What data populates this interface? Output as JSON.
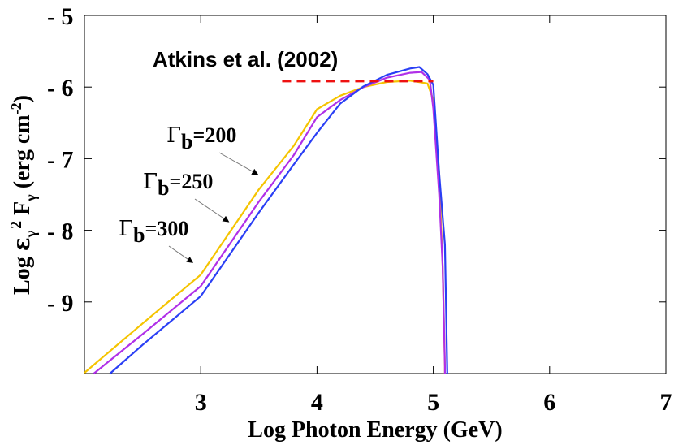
{
  "chart_data": {
    "type": "line",
    "title": "",
    "xlabel": "Log Photon Energy (GeV)",
    "ylabel_parts": {
      "log": "Log ",
      "eps": "ε",
      "gamma_sub": "γ",
      "two": "2",
      "F": " F",
      "units": " (erg cm",
      "minus2": "-2",
      "close": ")"
    },
    "xlim": [
      2,
      7
    ],
    "ylim": [
      -10,
      -5
    ],
    "x_ticks": [
      {
        "value": 3,
        "label": "3"
      },
      {
        "value": 4,
        "label": "4"
      },
      {
        "value": 5,
        "label": "5"
      },
      {
        "value": 6,
        "label": "6"
      },
      {
        "value": 7,
        "label": "7"
      }
    ],
    "y_ticks": [
      {
        "value": -5,
        "label": "- 5"
      },
      {
        "value": -6,
        "label": "- 6"
      },
      {
        "value": -7,
        "label": "- 7"
      },
      {
        "value": -8,
        "label": "- 8"
      },
      {
        "value": -9,
        "label": "- 9"
      }
    ],
    "series": [
      {
        "name": "Γb=200",
        "color": "#f5c400",
        "points": [
          [
            2.0,
            -9.99
          ],
          [
            2.5,
            -9.3
          ],
          [
            3.0,
            -8.62
          ],
          [
            3.5,
            -7.43
          ],
          [
            3.8,
            -6.82
          ],
          [
            4.0,
            -6.31
          ],
          [
            4.2,
            -6.12
          ],
          [
            4.4,
            -6.0
          ],
          [
            4.6,
            -5.93
          ],
          [
            4.8,
            -5.91
          ],
          [
            4.95,
            -5.95
          ],
          [
            5.0,
            -6.18
          ],
          [
            5.05,
            -7.2
          ],
          [
            5.08,
            -8.5
          ],
          [
            5.1,
            -9.9
          ],
          [
            5.1,
            -10.0
          ]
        ]
      },
      {
        "name": "Γb=250",
        "color": "#b030e8",
        "points": [
          [
            2.08,
            -10.0
          ],
          [
            2.5,
            -9.45
          ],
          [
            3.0,
            -8.78
          ],
          [
            3.5,
            -7.6
          ],
          [
            3.8,
            -6.95
          ],
          [
            4.0,
            -6.42
          ],
          [
            4.2,
            -6.18
          ],
          [
            4.4,
            -6.0
          ],
          [
            4.6,
            -5.87
          ],
          [
            4.8,
            -5.8
          ],
          [
            4.9,
            -5.79
          ],
          [
            4.97,
            -5.9
          ],
          [
            5.0,
            -6.3
          ],
          [
            5.05,
            -7.5
          ],
          [
            5.08,
            -8.5
          ],
          [
            5.1,
            -9.9
          ],
          [
            5.1,
            -10.0
          ]
        ]
      },
      {
        "name": "Γb=300",
        "color": "#2a3ff5",
        "points": [
          [
            2.22,
            -10.0
          ],
          [
            2.5,
            -9.6
          ],
          [
            3.0,
            -8.92
          ],
          [
            3.5,
            -7.75
          ],
          [
            3.8,
            -7.08
          ],
          [
            4.0,
            -6.64
          ],
          [
            4.2,
            -6.23
          ],
          [
            4.4,
            -5.99
          ],
          [
            4.6,
            -5.83
          ],
          [
            4.8,
            -5.74
          ],
          [
            4.88,
            -5.72
          ],
          [
            4.95,
            -5.82
          ],
          [
            5.0,
            -5.97
          ],
          [
            5.05,
            -7.2
          ],
          [
            5.1,
            -8.2
          ],
          [
            5.12,
            -10.0
          ]
        ]
      }
    ],
    "reference_line": {
      "name": "Atkins et al. (2002)",
      "color": "#ee1111",
      "x": [
        3.7,
        5.0
      ],
      "y": -5.92
    },
    "annotations": [
      {
        "greek": "Γ",
        "sub": "b",
        "text": "=200",
        "arrow_to": [
          3.49,
          -7.22
        ]
      },
      {
        "greek": "Γ",
        "sub": "b",
        "text": "=250",
        "arrow_to": [
          3.24,
          -7.88
        ]
      },
      {
        "greek": "Γ",
        "sub": "b",
        "text": "=300",
        "arrow_to": [
          2.93,
          -8.45
        ]
      }
    ]
  }
}
